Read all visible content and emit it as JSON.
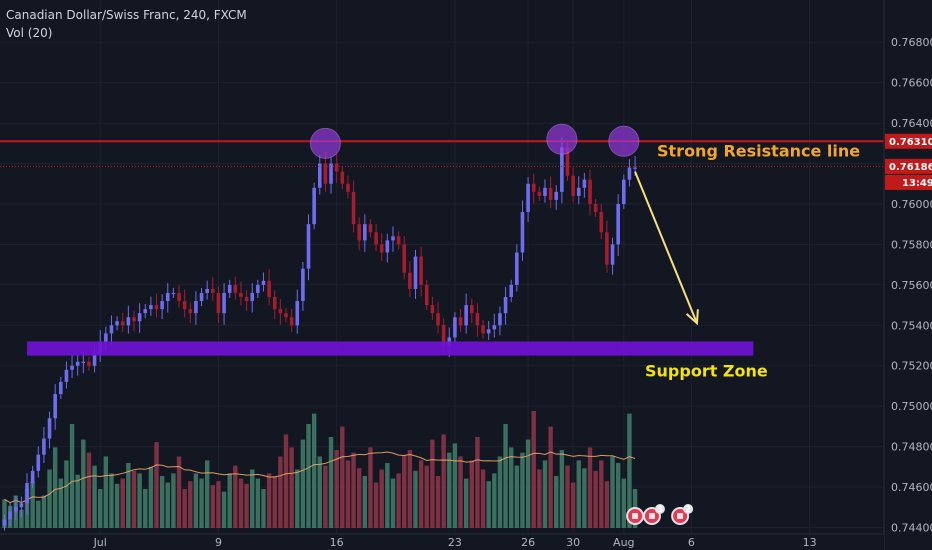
{
  "chart_data": {
    "type": "candlestick",
    "title": "Canadian Dollar/Swiss Franc, 240, FXCM",
    "indicator": "Vol (20)",
    "ylim": [
      0.744,
      0.769
    ],
    "y_ticks": [
      "0.76800",
      "0.76600",
      "0.76400",
      "0.76200",
      "0.76000",
      "0.75800",
      "0.75600",
      "0.75400",
      "0.75200",
      "0.75000",
      "0.74800",
      "0.74600",
      "0.74400"
    ],
    "x_ticks": [
      {
        "label": "Jul",
        "bar": 17
      },
      {
        "label": "9",
        "bar": 38
      },
      {
        "label": "16",
        "bar": 59
      },
      {
        "label": "23",
        "bar": 80
      },
      {
        "label": "26",
        "bar": 93
      },
      {
        "label": "30",
        "bar": 101
      },
      {
        "label": "Aug",
        "bar": 110
      },
      {
        "label": "6",
        "bar": 122
      },
      {
        "label": "13",
        "bar": 143
      }
    ],
    "price_tags": [
      {
        "label": "0.76310",
        "value": 0.7631,
        "color": "#c21a1a"
      },
      {
        "label": "0.76186",
        "value": 0.76186,
        "color": "#c21a1a"
      },
      {
        "label": "13:49",
        "value": 0.76186,
        "color": "#c21a1a"
      }
    ],
    "resistance": {
      "value": 0.7631,
      "label": "Strong Resistance line",
      "color": "#f5a623"
    },
    "support": {
      "low": 0.7525,
      "high": 0.7532,
      "bar_start": 4,
      "bar_end": 133,
      "label": "Support Zone",
      "color": "#f4e409"
    },
    "highlight_circles": [
      {
        "bar": 57,
        "value": 0.763
      },
      {
        "bar": 99,
        "value": 0.7632
      },
      {
        "bar": 110,
        "value": 0.7631
      }
    ],
    "arrow": {
      "from": {
        "bar": 112,
        "value": 0.7616
      },
      "to": {
        "bar": 123,
        "value": 0.7541
      }
    },
    "events": [
      {
        "bar": 112,
        "label": ""
      },
      {
        "bar": 115,
        "label": "3"
      },
      {
        "bar": 120,
        "label": "2"
      }
    ],
    "closes": [
      0.7444,
      0.7448,
      0.745,
      0.7452,
      0.7462,
      0.7468,
      0.7476,
      0.7484,
      0.7494,
      0.7506,
      0.7512,
      0.7518,
      0.752,
      0.7522,
      0.7522,
      0.752,
      0.7526,
      0.7532,
      0.7536,
      0.754,
      0.7542,
      0.754,
      0.7544,
      0.7542,
      0.7546,
      0.7548,
      0.755,
      0.7548,
      0.7552,
      0.7556,
      0.7556,
      0.7552,
      0.7548,
      0.7546,
      0.7552,
      0.7556,
      0.7558,
      0.7556,
      0.7546,
      0.7556,
      0.756,
      0.7556,
      0.7554,
      0.7552,
      0.7556,
      0.756,
      0.7562,
      0.7554,
      0.7548,
      0.7546,
      0.7544,
      0.754,
      0.7552,
      0.7568,
      0.759,
      0.7608,
      0.762,
      0.761,
      0.762,
      0.7616,
      0.761,
      0.7606,
      0.759,
      0.7582,
      0.759,
      0.7586,
      0.758,
      0.7576,
      0.7582,
      0.7584,
      0.758,
      0.7566,
      0.7558,
      0.7574,
      0.756,
      0.755,
      0.7546,
      0.754,
      0.753,
      0.7534,
      0.7544,
      0.754,
      0.755,
      0.7546,
      0.754,
      0.7536,
      0.7538,
      0.754,
      0.7546,
      0.7554,
      0.756,
      0.7576,
      0.7596,
      0.761,
      0.7606,
      0.7604,
      0.7608,
      0.7602,
      0.7606,
      0.7628,
      0.7614,
      0.7604,
      0.7608,
      0.7612,
      0.76,
      0.7596,
      0.7586,
      0.757,
      0.758,
      0.76,
      0.7612,
      0.7618,
      0.7618
    ],
    "volumes": [
      0.22,
      0.17,
      0.25,
      0.14,
      0.3,
      0.36,
      0.21,
      0.25,
      0.45,
      0.62,
      0.38,
      0.52,
      0.8,
      0.41,
      0.68,
      0.58,
      0.48,
      0.3,
      0.55,
      0.42,
      0.34,
      0.38,
      0.5,
      0.44,
      0.42,
      0.3,
      0.47,
      0.66,
      0.4,
      0.35,
      0.42,
      0.55,
      0.3,
      0.36,
      0.42,
      0.38,
      0.52,
      0.33,
      0.36,
      0.28,
      0.42,
      0.48,
      0.38,
      0.34,
      0.45,
      0.38,
      0.3,
      0.42,
      0.4,
      0.55,
      0.72,
      0.62,
      0.45,
      0.68,
      0.8,
      0.88,
      0.55,
      0.48,
      0.7,
      0.6,
      0.78,
      0.52,
      0.58,
      0.46,
      0.4,
      0.62,
      0.35,
      0.45,
      0.5,
      0.38,
      0.42,
      0.56,
      0.6,
      0.44,
      0.52,
      0.48,
      0.68,
      0.4,
      0.72,
      0.58,
      0.65,
      0.55,
      0.38,
      0.52,
      0.7,
      0.45,
      0.36,
      0.42,
      0.55,
      0.8,
      0.62,
      0.48,
      0.58,
      0.68,
      0.9,
      0.45,
      0.52,
      0.78,
      0.4,
      0.6,
      0.48,
      0.35,
      0.52,
      0.46,
      0.62,
      0.44,
      0.52,
      0.36,
      0.55,
      0.5,
      0.38,
      0.88,
      0.3
    ]
  }
}
